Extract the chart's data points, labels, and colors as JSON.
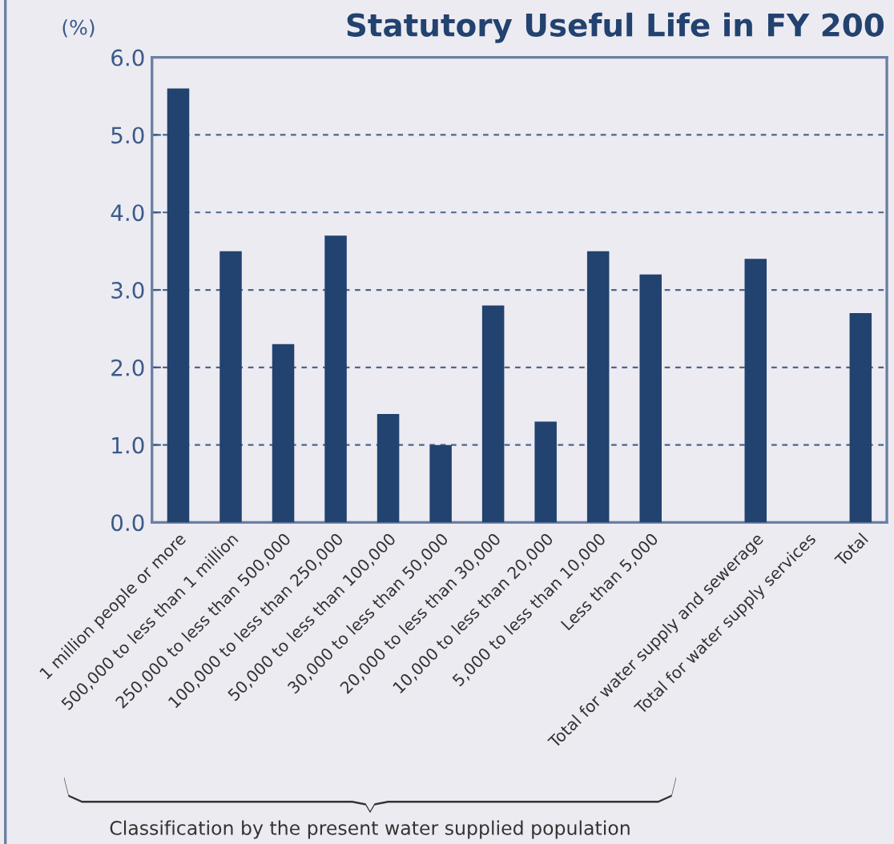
{
  "chart_data": {
    "type": "bar",
    "title": "Statutory Useful Life in FY 200",
    "ylabel": "(%)",
    "categories": [
      "1 million people or more",
      "500,000 to less than 1 million",
      "250,000 to less than 500,000",
      "100,000 to less than 250,000",
      "50,000 to less than 100,000",
      "30,000 to less than 50,000",
      "20,000 to less than 30,000",
      "10,000 to less than 20,000",
      "5,000 to less than 10,000",
      "Less than 5,000",
      null,
      "Total for water supply and sewerage",
      "Total for water supply services",
      "Total"
    ],
    "values": [
      5.6,
      3.5,
      2.3,
      3.7,
      1.4,
      1.0,
      2.8,
      1.3,
      3.5,
      3.2,
      0.0,
      3.4,
      0.0,
      2.7
    ],
    "color": "#22426f",
    "ylim": [
      0,
      6
    ],
    "yticks": [
      {
        "value": 0,
        "label": "0.0"
      },
      {
        "value": 1,
        "label": "1.0"
      },
      {
        "value": 2,
        "label": "2.0"
      },
      {
        "value": 3,
        "label": "3.0"
      },
      {
        "value": 4,
        "label": "4.0"
      },
      {
        "value": 5,
        "label": "5.0"
      },
      {
        "value": 6,
        "label": "6.0"
      }
    ],
    "grid": "y",
    "line_style": "dashed",
    "annotations": [
      "Classification by the present water supplied population"
    ]
  }
}
